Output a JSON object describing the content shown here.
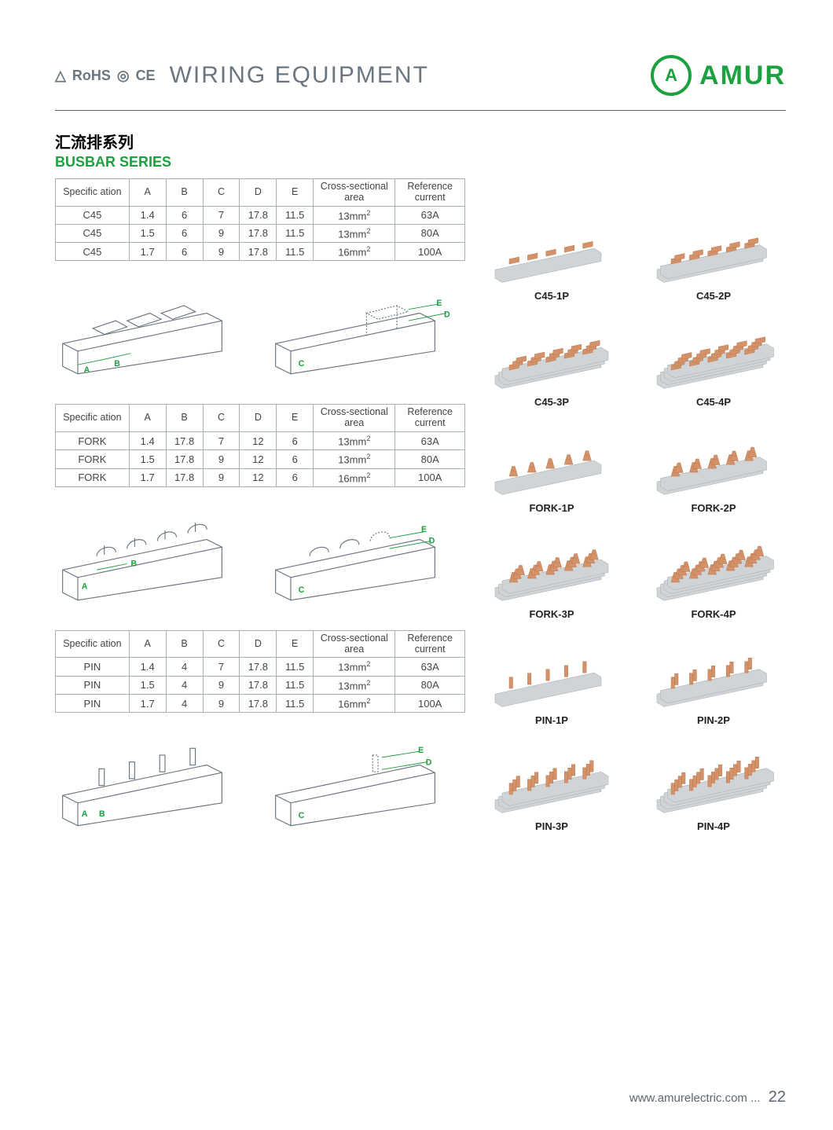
{
  "header": {
    "cert_marks": [
      "△",
      "RoHS",
      "◎",
      "CE"
    ],
    "title": "WIRING EQUIPMENT",
    "brand_logo_glyph": "A",
    "brand_name": "AMUR",
    "brand_color": "#1da03f"
  },
  "series": {
    "title_cn": "汇流排系列",
    "title_en": "BUSBAR SERIES"
  },
  "tables": {
    "columns": [
      "Specific ation",
      "A",
      "B",
      "C",
      "D",
      "E",
      "Cross-sectional area",
      "Reference current"
    ],
    "c45": {
      "rows": [
        [
          "C45",
          "1.4",
          "6",
          "7",
          "17.8",
          "11.5",
          "13mm²",
          "63A"
        ],
        [
          "C45",
          "1.5",
          "6",
          "9",
          "17.8",
          "11.5",
          "13mm²",
          "80A"
        ],
        [
          "C45",
          "1.7",
          "6",
          "9",
          "17.8",
          "11.5",
          "16mm²",
          "100A"
        ]
      ]
    },
    "fork": {
      "rows": [
        [
          "FORK",
          "1.4",
          "17.8",
          "7",
          "12",
          "6",
          "13mm²",
          "63A"
        ],
        [
          "FORK",
          "1.5",
          "17.8",
          "9",
          "12",
          "6",
          "13mm²",
          "80A"
        ],
        [
          "FORK",
          "1.7",
          "17.8",
          "9",
          "12",
          "6",
          "16mm²",
          "100A"
        ]
      ]
    },
    "pin": {
      "rows": [
        [
          "PIN",
          "1.4",
          "4",
          "7",
          "17.8",
          "11.5",
          "13mm²",
          "63A"
        ],
        [
          "PIN",
          "1.5",
          "4",
          "9",
          "17.8",
          "11.5",
          "13mm²",
          "80A"
        ],
        [
          "PIN",
          "1.7",
          "4",
          "9",
          "17.8",
          "11.5",
          "16mm²",
          "100A"
        ]
      ]
    },
    "column_widths_pct": [
      18,
      9,
      9,
      9,
      9,
      9,
      20,
      17
    ]
  },
  "diagrams": {
    "labels_left": [
      "A",
      "B"
    ],
    "labels_right": [
      "C",
      "D",
      "E"
    ],
    "stroke": "#6b7680",
    "accent": "#1da03f"
  },
  "products": [
    [
      {
        "label": "C45-1P",
        "type": "c45",
        "poles": 1
      },
      {
        "label": "C45-2P",
        "type": "c45",
        "poles": 2
      }
    ],
    [
      {
        "label": "C45-3P",
        "type": "c45",
        "poles": 3
      },
      {
        "label": "C45-4P",
        "type": "c45",
        "poles": 4
      }
    ],
    [
      {
        "label": "FORK-1P",
        "type": "fork",
        "poles": 1
      },
      {
        "label": "FORK-2P",
        "type": "fork",
        "poles": 2
      }
    ],
    [
      {
        "label": "FORK-3P",
        "type": "fork",
        "poles": 3
      },
      {
        "label": "FORK-4P",
        "type": "fork",
        "poles": 4
      }
    ],
    [
      {
        "label": "PIN-1P",
        "type": "pin",
        "poles": 1
      },
      {
        "label": "PIN-2P",
        "type": "pin",
        "poles": 2
      }
    ],
    [
      {
        "label": "PIN-3P",
        "type": "pin",
        "poles": 3
      },
      {
        "label": "PIN-4P",
        "type": "pin",
        "poles": 4
      }
    ]
  ],
  "product_colors": {
    "copper": "#d4926a",
    "copper_dark": "#b87548",
    "rail_light": "#d0d4d7",
    "rail_dark": "#a8b0b7"
  },
  "footer": {
    "url": "www.amurelectric.com ...",
    "page": "22"
  }
}
